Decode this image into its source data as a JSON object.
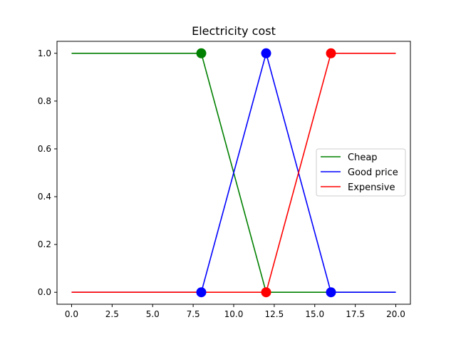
{
  "chart_data": {
    "type": "line",
    "title": "Electricity cost",
    "xlabel": "",
    "ylabel": "",
    "xlim": [
      -0.9,
      20.9
    ],
    "ylim": [
      -0.05,
      1.05
    ],
    "x_ticks": [
      0.0,
      2.5,
      5.0,
      7.5,
      10.0,
      12.5,
      15.0,
      17.5,
      20.0
    ],
    "x_tick_labels": [
      "0.0",
      "2.5",
      "5.0",
      "7.5",
      "10.0",
      "12.5",
      "15.0",
      "17.5",
      "20.0"
    ],
    "y_ticks": [
      0.0,
      0.2,
      0.4,
      0.6,
      0.8,
      1.0
    ],
    "y_tick_labels": [
      "0.0",
      "0.2",
      "0.4",
      "0.6",
      "0.8",
      "1.0"
    ],
    "grid": false,
    "legend_position": "center-right",
    "series": [
      {
        "name": "Cheap",
        "color": "#008000",
        "x": [
          0,
          8,
          12,
          16,
          20
        ],
        "values": [
          1.0,
          1.0,
          0.0,
          0.0,
          0.0
        ],
        "markers": [
          {
            "x": 8,
            "y": 1.0
          }
        ]
      },
      {
        "name": "Good price",
        "color": "#0000ff",
        "x": [
          0,
          8,
          12,
          16,
          20
        ],
        "values": [
          0.0,
          0.0,
          1.0,
          0.0,
          0.0
        ],
        "markers": [
          {
            "x": 8,
            "y": 0.0
          },
          {
            "x": 12,
            "y": 1.0
          },
          {
            "x": 16,
            "y": 0.0
          }
        ]
      },
      {
        "name": "Expensive",
        "color": "#ff0000",
        "x": [
          0,
          8,
          12,
          16,
          20
        ],
        "values": [
          0.0,
          0.0,
          0.0,
          1.0,
          1.0
        ],
        "markers": [
          {
            "x": 12,
            "y": 0.0
          },
          {
            "x": 16,
            "y": 1.0
          }
        ]
      }
    ]
  }
}
